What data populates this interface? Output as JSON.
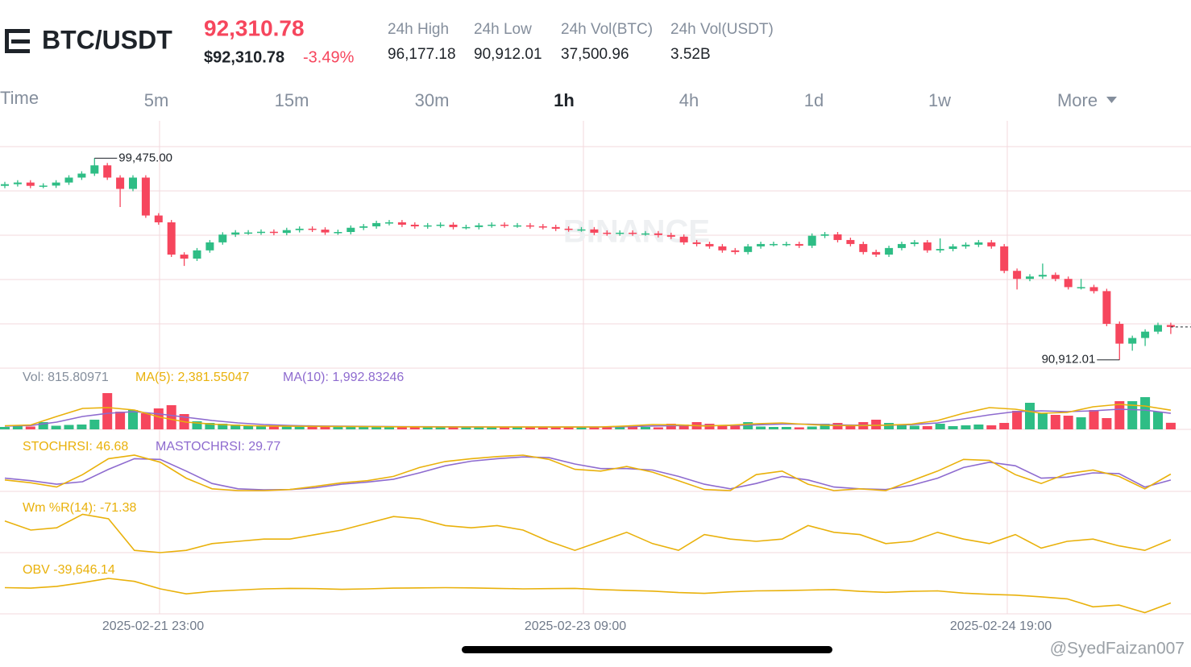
{
  "header": {
    "pair": "BTC/USDT",
    "price": "92,310.78",
    "price_usd": "$92,310.78",
    "change": "-3.49%",
    "stats": [
      {
        "label": "24h High",
        "value": "96,177.18"
      },
      {
        "label": "24h Low",
        "value": "90,912.01"
      },
      {
        "label": "24h Vol(BTC)",
        "value": "37,500.96"
      },
      {
        "label": "24h Vol(USDT)",
        "value": "3.52B"
      }
    ]
  },
  "tabs": [
    "Time",
    "5m",
    "15m",
    "30m",
    "1h",
    "4h",
    "1d",
    "1w",
    "More"
  ],
  "active_tab": "1h",
  "watermark": "BINANCE",
  "credit": "@SyedFaizan007",
  "chart_data": {
    "type": "candlestick",
    "up_color": "#2ebd85",
    "down_color": "#f6465d",
    "ylim": [
      90560,
      101060
    ],
    "high_label": "99,475.00",
    "low_label": "90,912.01",
    "x_labels": [
      "2025-02-21 23:00",
      "2025-02-23 09:00",
      "2025-02-24 19:00"
    ],
    "open": [
      98300,
      98370,
      98440,
      98300,
      98310,
      98440,
      98650,
      98820,
      99170,
      98650,
      98170,
      98650,
      97040,
      96750,
      95380,
      95210,
      95560,
      95900,
      96230,
      96320,
      96320,
      96350,
      96300,
      96420,
      96480,
      96440,
      96320,
      96340,
      96520,
      96580,
      96720,
      96750,
      96650,
      96580,
      96620,
      96650,
      96550,
      96550,
      96620,
      96650,
      96620,
      96620,
      96580,
      96550,
      96480,
      96450,
      96450,
      96310,
      96280,
      96310,
      96280,
      96280,
      96210,
      96140,
      95900,
      95830,
      95730,
      95560,
      95490,
      95730,
      95830,
      95830,
      95830,
      95760,
      96180,
      96240,
      96000,
      95830,
      95490,
      95380,
      95660,
      95830,
      95900,
      95560,
      95620,
      95730,
      95800,
      95900,
      95730,
      94690,
      94350,
      94450,
      94520,
      94350,
      94000,
      94000,
      93830,
      92440,
      91600,
      91840,
      92110,
      92390
    ],
    "high": [
      98470,
      98540,
      98540,
      98410,
      98540,
      98750,
      98920,
      99475,
      99270,
      98750,
      98750,
      98750,
      97140,
      96850,
      95480,
      95660,
      96000,
      96330,
      96420,
      96420,
      96450,
      96450,
      96520,
      96580,
      96580,
      96540,
      96440,
      96620,
      96680,
      96820,
      96850,
      96850,
      96750,
      96720,
      96750,
      96750,
      96650,
      96720,
      96750,
      96750,
      96720,
      96720,
      96680,
      96650,
      96580,
      96550,
      96550,
      96410,
      96410,
      96410,
      96380,
      96380,
      96310,
      96240,
      96000,
      95930,
      95830,
      95660,
      95830,
      95930,
      95930,
      95930,
      95930,
      96280,
      96340,
      96340,
      96100,
      95930,
      95590,
      95760,
      95930,
      96000,
      96000,
      96070,
      95830,
      95900,
      96000,
      96000,
      95830,
      94790,
      94550,
      95000,
      94620,
      94450,
      94350,
      94100,
      93930,
      92540,
      91940,
      92210,
      92490,
      92490
    ],
    "low": [
      98200,
      98270,
      98200,
      98200,
      98210,
      98340,
      98550,
      98720,
      98550,
      97400,
      98070,
      96940,
      96650,
      95280,
      94900,
      95110,
      95460,
      95800,
      96130,
      96220,
      96220,
      96200,
      96200,
      96320,
      96340,
      96220,
      96220,
      96240,
      96420,
      96480,
      96620,
      96550,
      96480,
      96480,
      96520,
      96450,
      96450,
      96450,
      96520,
      96520,
      96520,
      96480,
      96450,
      96380,
      96350,
      96350,
      96210,
      96180,
      96180,
      96180,
      96180,
      96110,
      96040,
      95800,
      95730,
      95630,
      95460,
      95390,
      95390,
      95630,
      95730,
      95730,
      95660,
      95660,
      96080,
      95900,
      95730,
      95390,
      95280,
      95280,
      95560,
      95730,
      95460,
      95460,
      95520,
      95630,
      95700,
      95630,
      94590,
      93900,
      94250,
      94350,
      94250,
      93900,
      93900,
      93730,
      92340,
      90912,
      91300,
      91500,
      92010,
      92010
    ],
    "close": [
      98370,
      98440,
      98300,
      98310,
      98440,
      98650,
      98820,
      99170,
      98650,
      98170,
      98650,
      97040,
      96750,
      95380,
      95210,
      95560,
      95900,
      96230,
      96320,
      96320,
      96350,
      96300,
      96420,
      96480,
      96440,
      96320,
      96340,
      96520,
      96580,
      96720,
      96750,
      96650,
      96580,
      96620,
      96650,
      96550,
      96550,
      96620,
      96650,
      96620,
      96620,
      96580,
      96550,
      96480,
      96450,
      96450,
      96310,
      96280,
      96310,
      96280,
      96280,
      96210,
      96140,
      95900,
      95830,
      95730,
      95560,
      95490,
      95730,
      95830,
      95830,
      95830,
      95760,
      96180,
      96240,
      96000,
      95830,
      95490,
      95380,
      95660,
      95830,
      95900,
      95560,
      95620,
      95730,
      95800,
      95900,
      95730,
      94690,
      94350,
      94450,
      94520,
      94350,
      94000,
      94000,
      93830,
      92440,
      91600,
      91840,
      92110,
      92390,
      92310
    ],
    "volume": {
      "ylim": [
        0,
        7500
      ],
      "legend": "Vol: 815.80971",
      "ma5_legend": "MA(5): 2,381.55047",
      "ma10_legend": "MA(10): 1,992.83246",
      "ma5_color": "#e9b10b",
      "ma10_color": "#8e6bcf",
      "values": [
        300,
        400,
        350,
        900,
        450,
        550,
        600,
        1200,
        4500,
        2200,
        2400,
        2000,
        2600,
        3000,
        1900,
        1000,
        800,
        700,
        600,
        500,
        450,
        400,
        350,
        400,
        500,
        350,
        300,
        450,
        400,
        350,
        300,
        350,
        300,
        400,
        350,
        300,
        250,
        300,
        300,
        250,
        300,
        300,
        250,
        300,
        350,
        300,
        250,
        300,
        250,
        300,
        300,
        250,
        700,
        600,
        900,
        700,
        500,
        600,
        900,
        350,
        300,
        300,
        250,
        350,
        700,
        800,
        600,
        900,
        1200,
        800,
        500,
        450,
        400,
        700,
        400,
        500,
        600,
        500,
        800,
        2300,
        3300,
        2000,
        1800,
        1700,
        1500,
        2400,
        1400,
        3500,
        3500,
        4000,
        2200,
        815.80971
      ],
      "ma5": [
        450,
        550,
        1600,
        2600,
        2700,
        2400,
        1500,
        900,
        650,
        500,
        420,
        390,
        370,
        360,
        340,
        320,
        310,
        300,
        300,
        290,
        290,
        290,
        290,
        300,
        420,
        600,
        560,
        420,
        520,
        700,
        800,
        600,
        480,
        470,
        520,
        650,
        1100,
        2000,
        2700,
        2500,
        2000,
        2100,
        2800,
        3100,
        2900,
        2381.55047
      ],
      "ma10": [
        400,
        480,
        900,
        1600,
        2000,
        2200,
        1900,
        1500,
        1100,
        800,
        600,
        480,
        420,
        390,
        370,
        350,
        330,
        320,
        310,
        300,
        295,
        290,
        290,
        295,
        330,
        420,
        470,
        470,
        480,
        560,
        650,
        650,
        560,
        520,
        520,
        580,
        800,
        1300,
        1800,
        2200,
        2300,
        2200,
        2300,
        2500,
        2400,
        1992.83246
      ]
    },
    "stochrsi": {
      "ylim": [
        0,
        100
      ],
      "legend": "STOCHRSI: 46.68",
      "ma_legend": "MASTOCHRSI: 29.77",
      "values": [
        30,
        22,
        10,
        45,
        90,
        100,
        80,
        35,
        5,
        0,
        0,
        3,
        12,
        22,
        28,
        40,
        65,
        82,
        90,
        96,
        100,
        88,
        60,
        55,
        68,
        52,
        28,
        3,
        0,
        45,
        55,
        18,
        0,
        5,
        0,
        28,
        55,
        88,
        85,
        45,
        20,
        48,
        58,
        40,
        5,
        46.68
      ],
      "ma": [
        35,
        28,
        18,
        25,
        60,
        90,
        88,
        55,
        20,
        5,
        2,
        3,
        8,
        18,
        24,
        32,
        50,
        70,
        83,
        90,
        95,
        93,
        75,
        62,
        62,
        58,
        40,
        18,
        5,
        20,
        40,
        30,
        10,
        5,
        3,
        15,
        35,
        65,
        80,
        70,
        35,
        38,
        50,
        48,
        10,
        29.77
      ]
    },
    "williams_r": {
      "ylim": [
        -100,
        0
      ],
      "legend": "Wm %R(14): -71.38",
      "values": [
        -30,
        -50,
        -45,
        -15,
        -25,
        -95,
        -100,
        -95,
        -80,
        -75,
        -70,
        -70,
        -60,
        -50,
        -35,
        -20,
        -25,
        -40,
        -45,
        -40,
        -50,
        -75,
        -95,
        -75,
        -55,
        -80,
        -95,
        -60,
        -70,
        -75,
        -70,
        -40,
        -55,
        -60,
        -80,
        -75,
        -55,
        -70,
        -80,
        -60,
        -90,
        -75,
        -70,
        -85,
        -95,
        -71.38
      ]
    },
    "obv": {
      "ylim": [
        -44000,
        -24000
      ],
      "legend": "OBV -39,646.14",
      "values": [
        -33500,
        -33700,
        -33000,
        -31500,
        -29800,
        -31000,
        -34000,
        -36000,
        -35000,
        -34500,
        -34000,
        -33800,
        -33900,
        -34200,
        -34000,
        -33700,
        -33600,
        -33500,
        -33600,
        -33800,
        -34000,
        -33900,
        -33800,
        -34300,
        -34600,
        -34900,
        -35500,
        -35800,
        -35200,
        -34800,
        -34700,
        -34500,
        -34300,
        -35000,
        -35400,
        -35000,
        -34800,
        -35700,
        -36200,
        -36500,
        -37200,
        -38000,
        -41200,
        -40500,
        -43500,
        -39646.14
      ]
    }
  }
}
